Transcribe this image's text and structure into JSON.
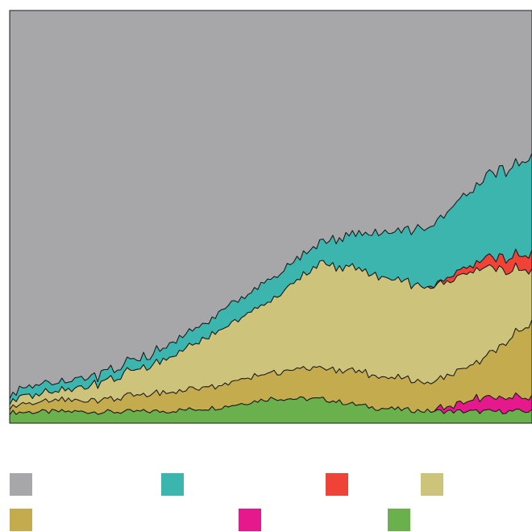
{
  "chart_data": {
    "type": "area",
    "stacked": true,
    "normalized": true,
    "title": "",
    "xlabel": "",
    "ylabel": "",
    "ylim": [
      0,
      1
    ],
    "grid": false,
    "legend_position": "bottom",
    "x": [
      0,
      10,
      20,
      30,
      40,
      50,
      60,
      70,
      80,
      90,
      100
    ],
    "series": [
      {
        "color": "#6ab04c",
        "values": [
          0.026,
          0.028,
          0.027,
          0.029,
          0.038,
          0.06,
          0.058,
          0.037,
          0.029,
          0.028,
          0.029
        ]
      },
      {
        "color": "#e6198c",
        "values": [
          0.0,
          0.0,
          0.0,
          0.0,
          0.0,
          0.0,
          0.0,
          0.0,
          0.0,
          0.034,
          0.034
        ]
      },
      {
        "color": "#c3ab4e",
        "values": [
          0.018,
          0.025,
          0.034,
          0.045,
          0.054,
          0.064,
          0.076,
          0.08,
          0.07,
          0.089,
          0.18
        ]
      },
      {
        "color": "#cec37b",
        "values": [
          0.015,
          0.025,
          0.048,
          0.082,
          0.13,
          0.175,
          0.255,
          0.245,
          0.228,
          0.223,
          0.125
        ]
      },
      {
        "color": "#ef4337",
        "values": [
          0.0,
          0.0,
          0.0,
          0.0,
          0.0,
          0.0,
          0.0,
          0.0,
          0.0,
          0.02,
          0.04
        ]
      },
      {
        "color": "#3cb5af",
        "values": [
          0.02,
          0.02,
          0.02,
          0.03,
          0.043,
          0.051,
          0.052,
          0.103,
          0.144,
          0.19,
          0.235
        ]
      },
      {
        "color": "#a7a7aa",
        "values": [
          0.921,
          0.902,
          0.871,
          0.814,
          0.735,
          0.65,
          0.559,
          0.535,
          0.529,
          0.416,
          0.357
        ]
      }
    ]
  },
  "legend": [
    {
      "color": "#a7a7aa",
      "label": ""
    },
    {
      "color": "#3cb5af",
      "label": ""
    },
    {
      "color": "#ef4337",
      "label": ""
    },
    {
      "color": "#cec37b",
      "label": ""
    },
    {
      "color": "#c3ab4e",
      "label": ""
    },
    {
      "color": "#e6198c",
      "label": ""
    },
    {
      "color": "#6ab04c",
      "label": ""
    }
  ]
}
